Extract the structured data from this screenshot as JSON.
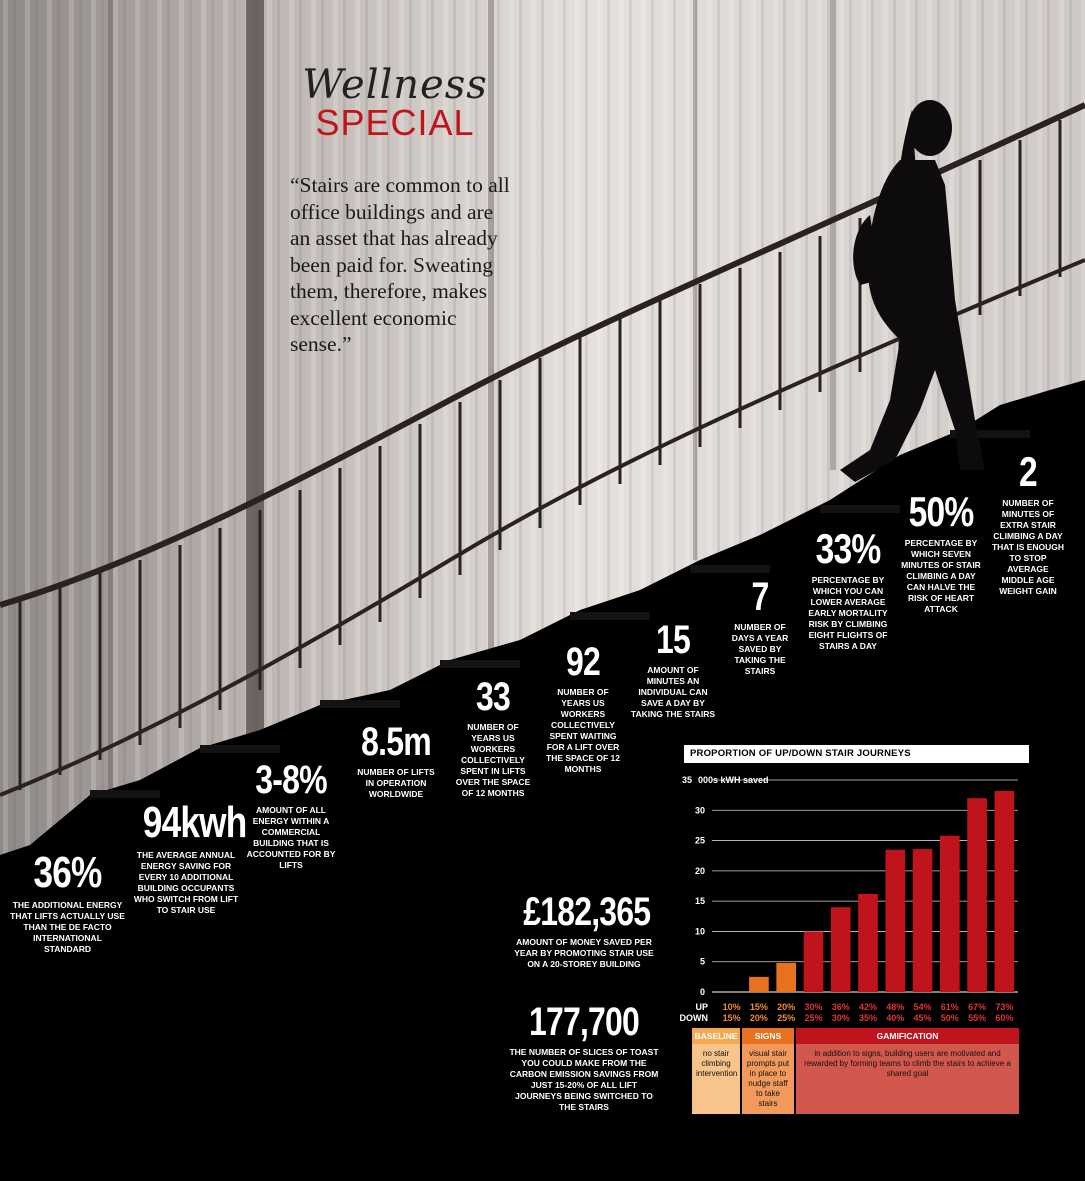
{
  "masthead": {
    "top": "Wellness",
    "bottom": "SPECIAL"
  },
  "quote": "“Stairs are common to all office buildings and are an asset that has already been paid for. Sweating them, therefore, makes excellent economic sense.”",
  "stats": [
    {
      "value": "36%",
      "text": "The additional energy that lifts actually use than the de facto international standard"
    },
    {
      "value": "94kwh",
      "text": "The average annual energy saving for every 10 additional building occupants who switch from lift to stair use"
    },
    {
      "value": "3-8%",
      "text": "Amount of all energy within a commercial building that is accounted for by lifts"
    },
    {
      "value": "8.5m",
      "text": "Number of lifts in operation worldwide"
    },
    {
      "value": "33",
      "text": "Number of years US workers collectively spent in lifts over the space of 12 months"
    },
    {
      "value": "92",
      "text": "Number of years US workers collectively spent waiting for a lift over the space of 12 months"
    },
    {
      "value": "15",
      "text": "Amount of minutes an individual can save a day by taking the stairs"
    },
    {
      "value": "7",
      "text": "Number of days a year saved by taking the stairs"
    },
    {
      "value": "33%",
      "text": "Percentage by which you can lower average early mortality risk by climbing eight flights of stairs a day"
    },
    {
      "value": "50%",
      "text": "Percentage by which seven minutes of stair climbing a day can halve the risk of heart attack"
    },
    {
      "value": "2",
      "text": "Number of minutes of extra stair climbing a day that is enough to stop average middle age weight gain"
    },
    {
      "value": "£182,365",
      "text": "Amount of money saved per year by promoting stair use on a 20-storey building"
    },
    {
      "value": "177,700",
      "text": "The number of slices of toast you could make from the carbon emission savings from just 15-20% of all lift journeys being switched to the stairs"
    }
  ],
  "chart_data": {
    "type": "bar",
    "title": "PROPORTION OF UP/DOWN STAIR JOURNEYS",
    "ylabel": "000s kWH saved",
    "ylim": [
      0,
      35
    ],
    "yticks": [
      0,
      5,
      10,
      15,
      20,
      25,
      30,
      35
    ],
    "row_labels": [
      "UP",
      "DOWN"
    ],
    "categories_up": [
      "10%",
      "15%",
      "20%",
      "30%",
      "36%",
      "42%",
      "48%",
      "54%",
      "61%",
      "67%",
      "73%"
    ],
    "categories_down": [
      "15%",
      "20%",
      "25%",
      "25%",
      "30%",
      "35%",
      "40%",
      "45%",
      "50%",
      "55%",
      "60%"
    ],
    "values": [
      0,
      2.5,
      4.8,
      10,
      14,
      16.2,
      23.5,
      23.6,
      25.8,
      32,
      33.2
    ],
    "groups": [
      "baseline",
      "signs",
      "signs",
      "gamification",
      "gamification",
      "gamification",
      "gamification",
      "gamification",
      "gamification",
      "gamification",
      "gamification"
    ],
    "colors": {
      "baseline": "#f5a94e",
      "signs": "#e8711f",
      "gamification": "#c0141c"
    },
    "legend": [
      {
        "title": "BASELINE",
        "text": "no stair climbing intervention"
      },
      {
        "title": "SIGNS",
        "text": "visual stair prompts put in place to nudge staff to take stairs"
      },
      {
        "title": "GAMIFICATION",
        "text": "in addition to signs, building users are motivated and rewarded by forming teams to climb the stairs to achieve a shared goal"
      }
    ]
  }
}
